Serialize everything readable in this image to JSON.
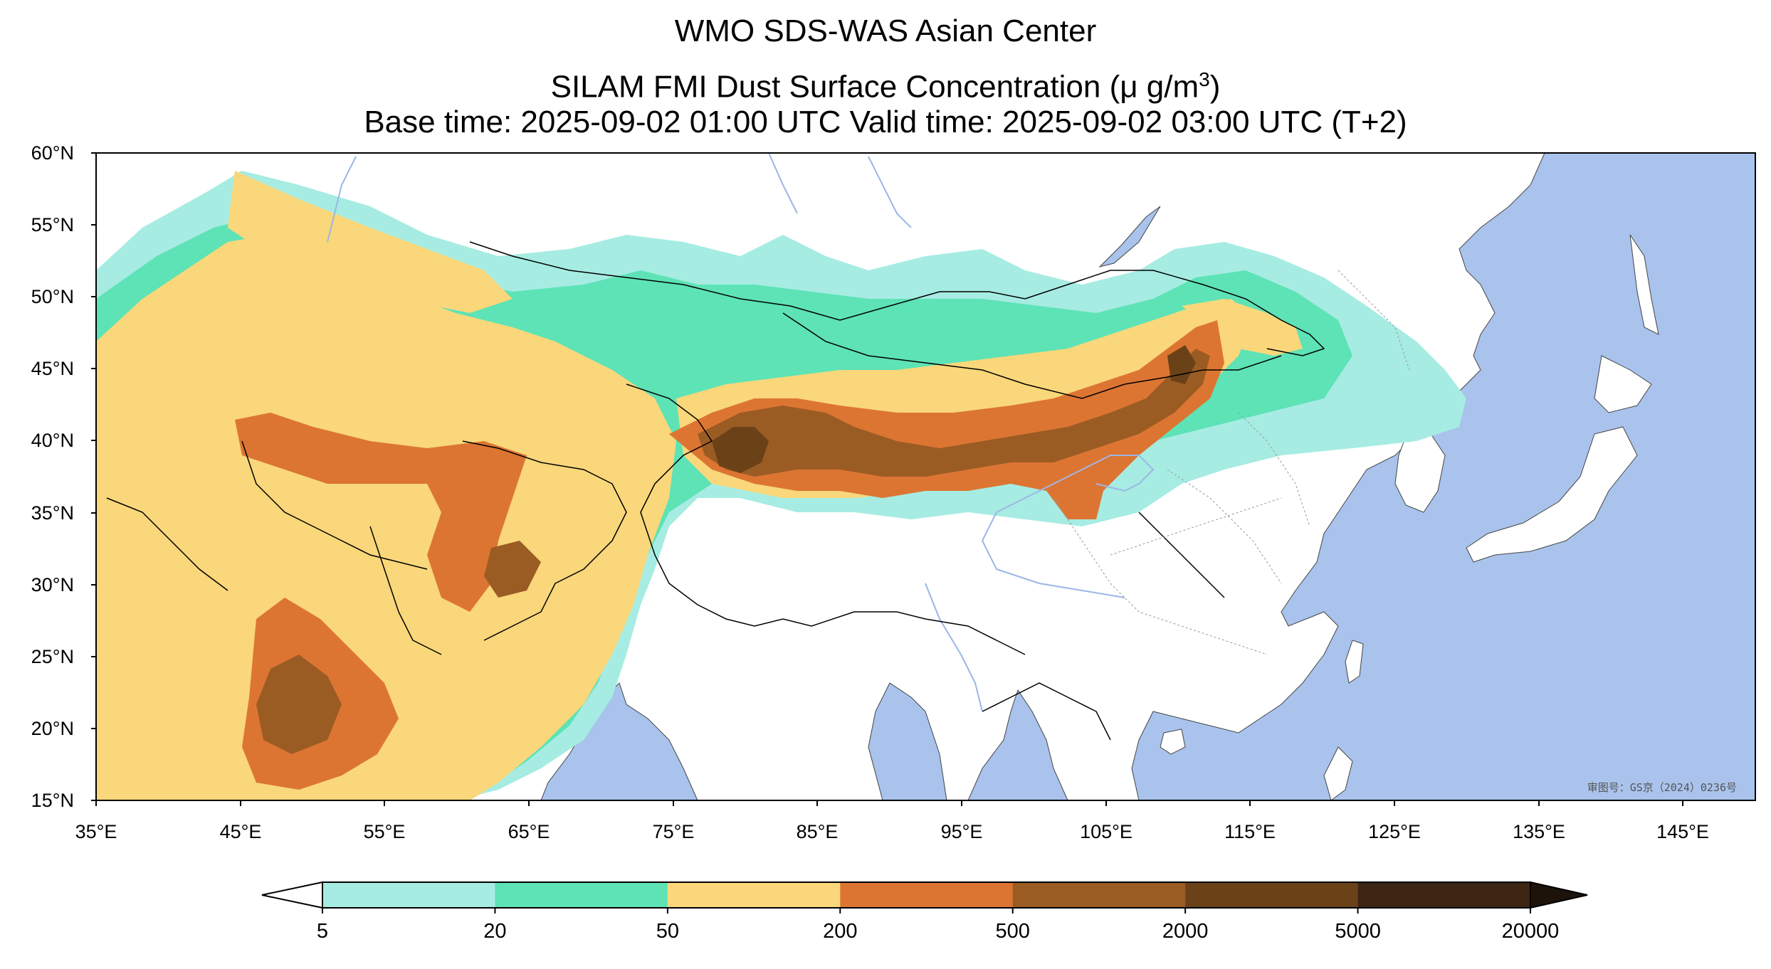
{
  "header": {
    "title": "WMO SDS-WAS Asian Center",
    "subtitle_prefix": "SILAM FMI Dust Surface Concentration (",
    "subtitle_unit": "μ g/m",
    "subtitle_exp": "3",
    "subtitle_suffix": ")",
    "times": "Base time: 2025-09-02 01:00 UTC Valid time: 2025-09-02 03:00 UTC (T+2)"
  },
  "map": {
    "lon_range": [
      35,
      150
    ],
    "lat_range": [
      15,
      60
    ],
    "lat_ticks": [
      "60°N",
      "55°N",
      "50°N",
      "45°N",
      "40°N",
      "35°N",
      "30°N",
      "25°N",
      "20°N",
      "15°N"
    ],
    "lon_ticks": [
      "35°E",
      "45°E",
      "55°E",
      "65°E",
      "75°E",
      "85°E",
      "95°E",
      "105°E",
      "115°E",
      "125°E",
      "135°E",
      "145°E"
    ],
    "ocean_color": "#a9c3ec",
    "land_color": "#ffffff",
    "approval": "审图号：GS京（2024）0236号"
  },
  "colorbar": {
    "levels": [
      "5",
      "20",
      "50",
      "200",
      "500",
      "2000",
      "5000",
      "20000"
    ],
    "colors": [
      "#a6ece2",
      "#5de3b6",
      "#f9d77a",
      "#dd7532",
      "#9b5c24",
      "#6b4218",
      "#3c2613"
    ],
    "extend": "both"
  }
}
